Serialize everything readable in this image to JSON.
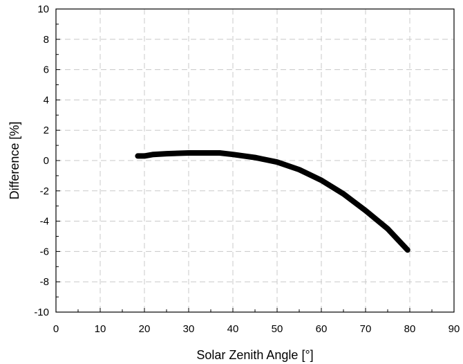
{
  "chart_data": {
    "type": "line",
    "title": "",
    "xlabel": "Solar Zenith Angle [°]",
    "ylabel": "Difference [%]",
    "xlim": [
      0,
      90
    ],
    "ylim": [
      -10,
      10
    ],
    "x_ticks": [
      "0",
      "10",
      "20",
      "30",
      "40",
      "50",
      "60",
      "70",
      "80",
      "90"
    ],
    "y_ticks": [
      "10",
      "8",
      "6",
      "4",
      "2",
      "0",
      "-2",
      "-4",
      "-6",
      "-8",
      "-10"
    ],
    "grid": true,
    "grid_style": "dashed",
    "legend": "none",
    "series": [
      {
        "color": "#000000",
        "x": [
          18.5,
          20,
          22,
          25,
          30,
          35,
          37,
          40,
          45,
          50,
          55,
          60,
          65,
          70,
          75,
          79.5
        ],
        "y": [
          0.3,
          0.3,
          0.4,
          0.45,
          0.5,
          0.5,
          0.5,
          0.4,
          0.2,
          -0.1,
          -0.6,
          -1.3,
          -2.2,
          -3.3,
          -4.5,
          -5.9
        ]
      }
    ]
  }
}
